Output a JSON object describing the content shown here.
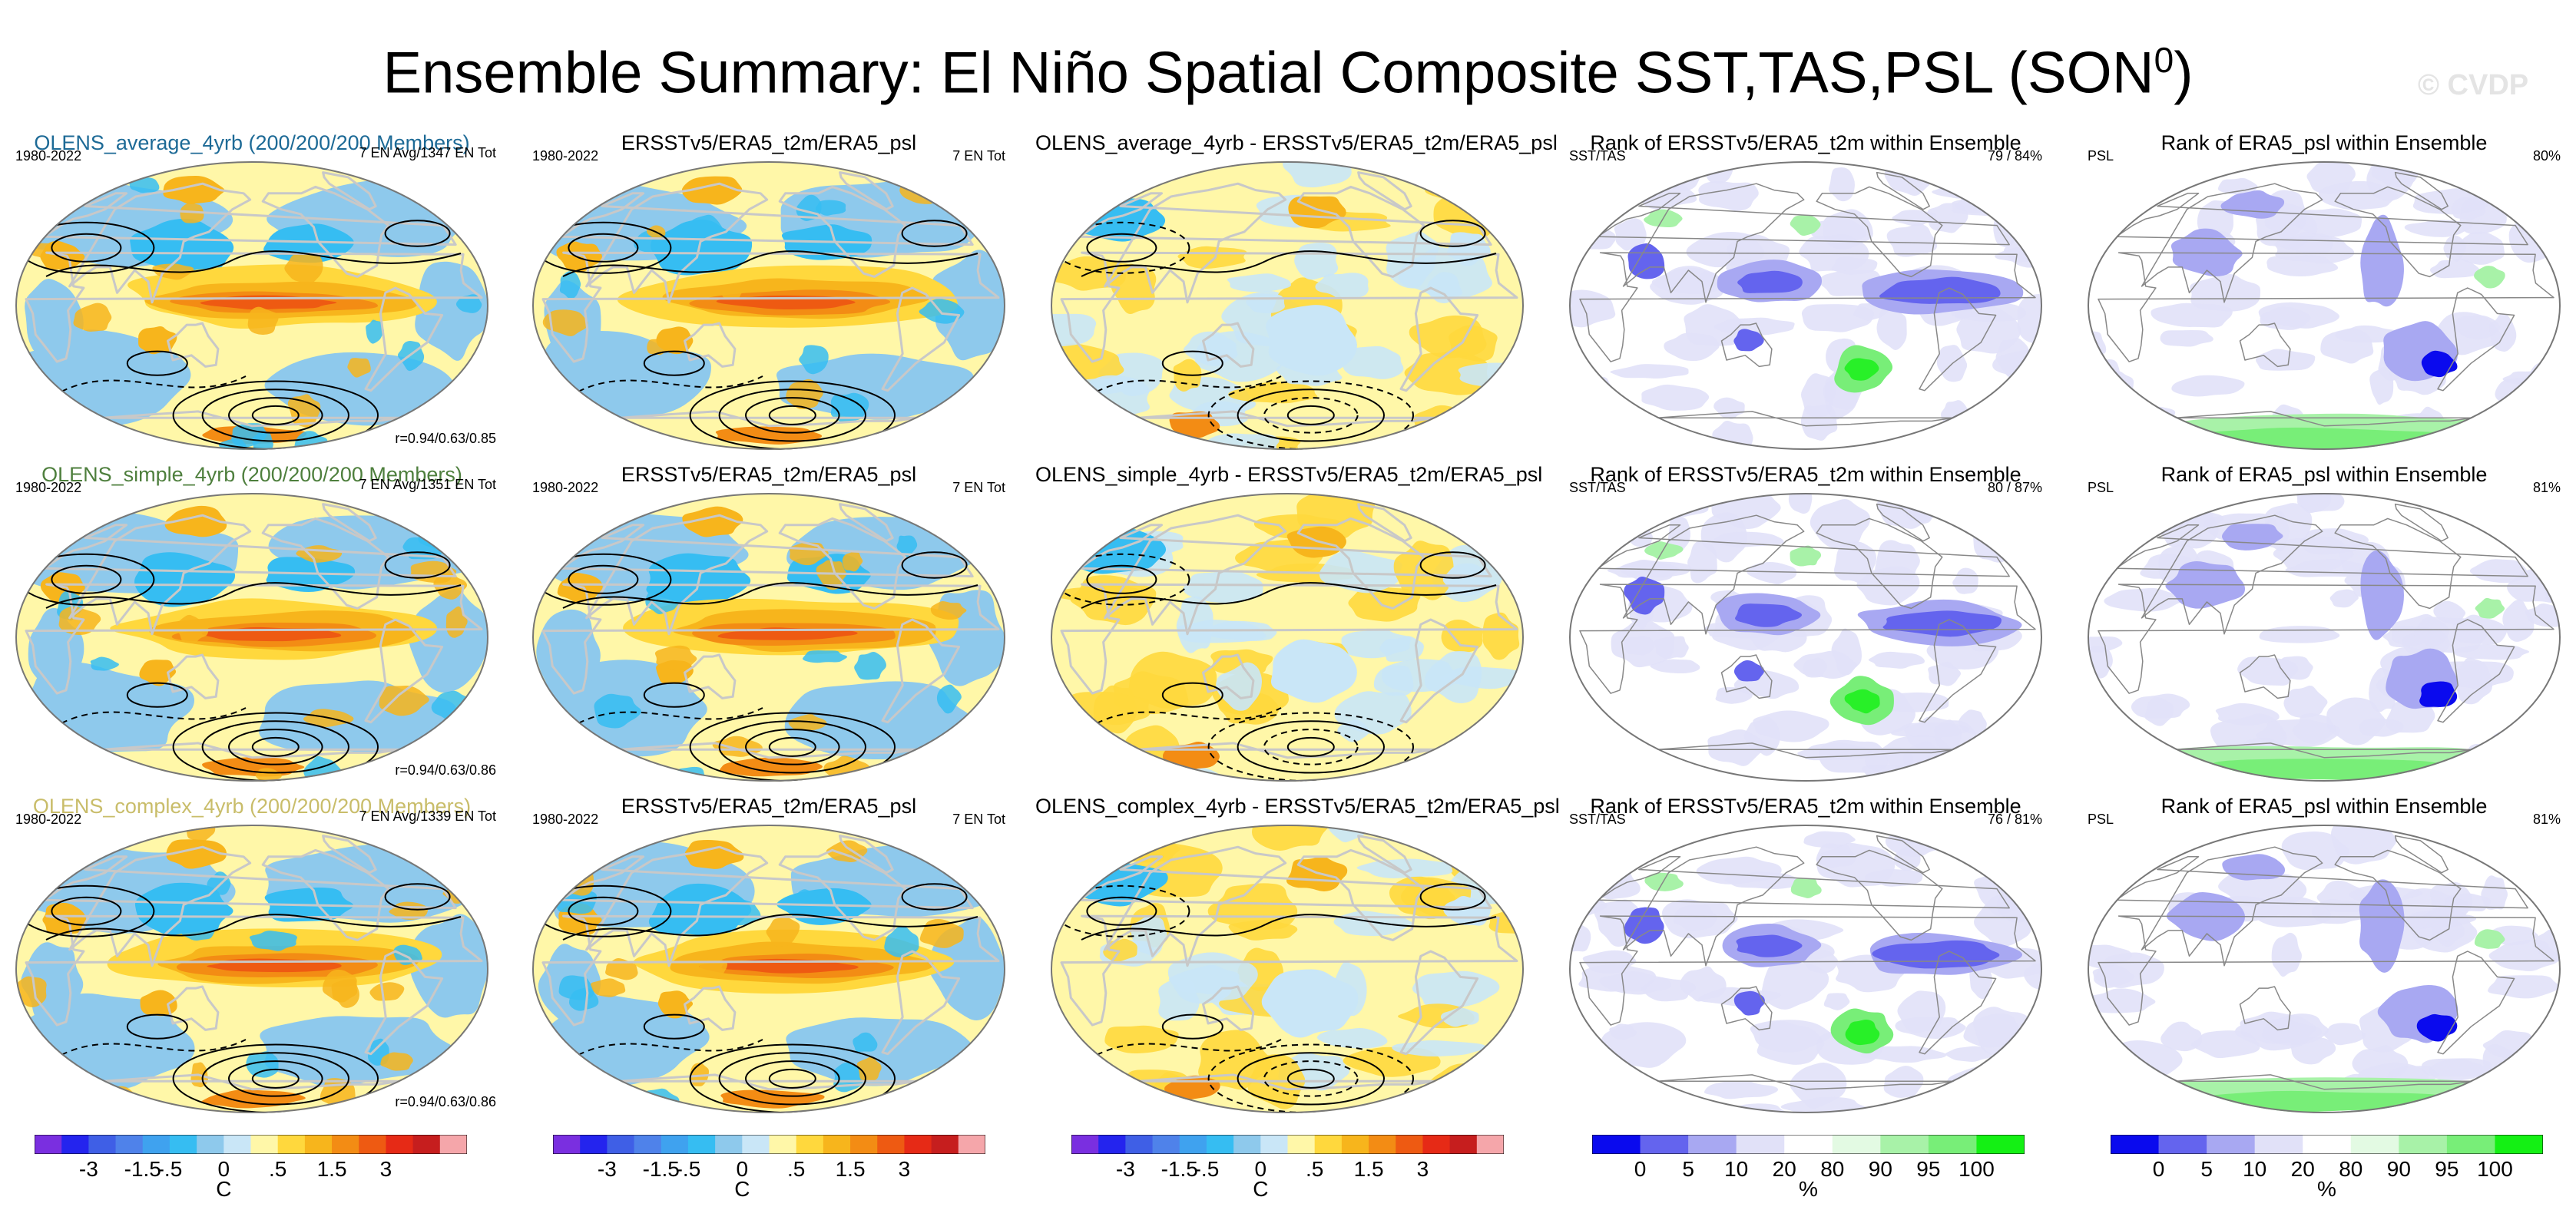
{
  "title": "Ensemble Summary: El Niño Spatial Composite SST,TAS,PSL (SON",
  "title_superscript": "0",
  "title_close": ")",
  "watermark": "© CVDP",
  "colors": {
    "avg_title": "#1d6a96",
    "simple_title": "#4e7f3d",
    "complex_title": "#c9bd6a",
    "land_contour": "#c8c8c8",
    "psl_contour": "#000000"
  },
  "rows": [
    {
      "ens_title": "OLENS_average_4yrb (200/200/200 Members)",
      "ens_years": "1980-2022",
      "ens_count": "7 EN Avg/1347 EN Tot",
      "ens_corr": "r=0.94/0.63/0.85",
      "obs_title": "ERSSTv5/ERA5_t2m/ERA5_psl",
      "obs_years": "1980-2022",
      "obs_count": "7 EN Tot",
      "diff_title": "OLENS_average_4yrb - ERSSTv5/ERA5_t2m/ERA5_psl",
      "rank1_title": "Rank of ERSSTv5/ERA5_t2m within Ensemble",
      "rank1_label": "SST/TAS",
      "rank1_pct": "79 /  84%",
      "rank2_title": "Rank of ERA5_psl within Ensemble",
      "rank2_label": "PSL",
      "rank2_pct": "80%"
    },
    {
      "ens_title": "OLENS_simple_4yrb (200/200/200 Members)",
      "ens_years": "1980-2022",
      "ens_count": "7 EN Avg/1351 EN Tot",
      "ens_corr": "r=0.94/0.63/0.86",
      "obs_title": "ERSSTv5/ERA5_t2m/ERA5_psl",
      "obs_years": "1980-2022",
      "obs_count": "7 EN Tot",
      "diff_title": "OLENS_simple_4yrb - ERSSTv5/ERA5_t2m/ERA5_psl",
      "rank1_title": "Rank of ERSSTv5/ERA5_t2m within Ensemble",
      "rank1_label": "SST/TAS",
      "rank1_pct": "80 /  87%",
      "rank2_title": "Rank of ERA5_psl within Ensemble",
      "rank2_label": "PSL",
      "rank2_pct": "81%"
    },
    {
      "ens_title": "OLENS_complex_4yrb (200/200/200 Members)",
      "ens_years": "1980-2022",
      "ens_count": "7 EN Avg/1339 EN Tot",
      "ens_corr": "r=0.94/0.63/0.86",
      "obs_title": "ERSSTv5/ERA5_t2m/ERA5_psl",
      "obs_years": "1980-2022",
      "obs_count": "7 EN Tot",
      "diff_title": "OLENS_complex_4yrb - ERSSTv5/ERA5_t2m/ERA5_psl",
      "rank1_title": "Rank of ERSSTv5/ERA5_t2m within Ensemble",
      "rank1_label": "SST/TAS",
      "rank1_pct": "76 /  81%",
      "rank2_title": "Rank of ERA5_psl within Ensemble",
      "rank2_label": "PSL",
      "rank2_pct": "81%"
    }
  ],
  "chart_data": [
    {
      "type": "colorbar",
      "name": "anomaly",
      "unit": "C",
      "tick_labels": [
        "-3",
        "-1.5",
        "-.5",
        "0",
        ".5",
        "1.5",
        "3"
      ],
      "levels": [
        -4,
        -3,
        -2,
        -1.5,
        -1,
        -0.5,
        -0.25,
        0,
        0.25,
        0.5,
        1,
        1.5,
        2,
        3,
        4
      ],
      "colors": [
        "#7a2fe0",
        "#2424ee",
        "#3f5fe6",
        "#4f82ea",
        "#3fa2ef",
        "#36bdf2",
        "#8ec9ec",
        "#c9e6f7",
        "#fff7a8",
        "#ffd83d",
        "#f7b51c",
        "#f38c14",
        "#ee5a12",
        "#e62a16",
        "#c61e1e",
        "#f5a6aa"
      ]
    },
    {
      "type": "colorbar",
      "name": "rank",
      "unit": "%",
      "tick_labels": [
        "0",
        "5",
        "10",
        "20",
        "80",
        "90",
        "95",
        "100"
      ],
      "levels": [
        0,
        5,
        10,
        20,
        80,
        90,
        95,
        100
      ],
      "colors": [
        "#0a0aee",
        "#6464ee",
        "#a8a8f2",
        "#e1e1f8",
        "#ffffff",
        "#e3fae3",
        "#a8f2a8",
        "#78ee78",
        "#14f014"
      ]
    }
  ]
}
